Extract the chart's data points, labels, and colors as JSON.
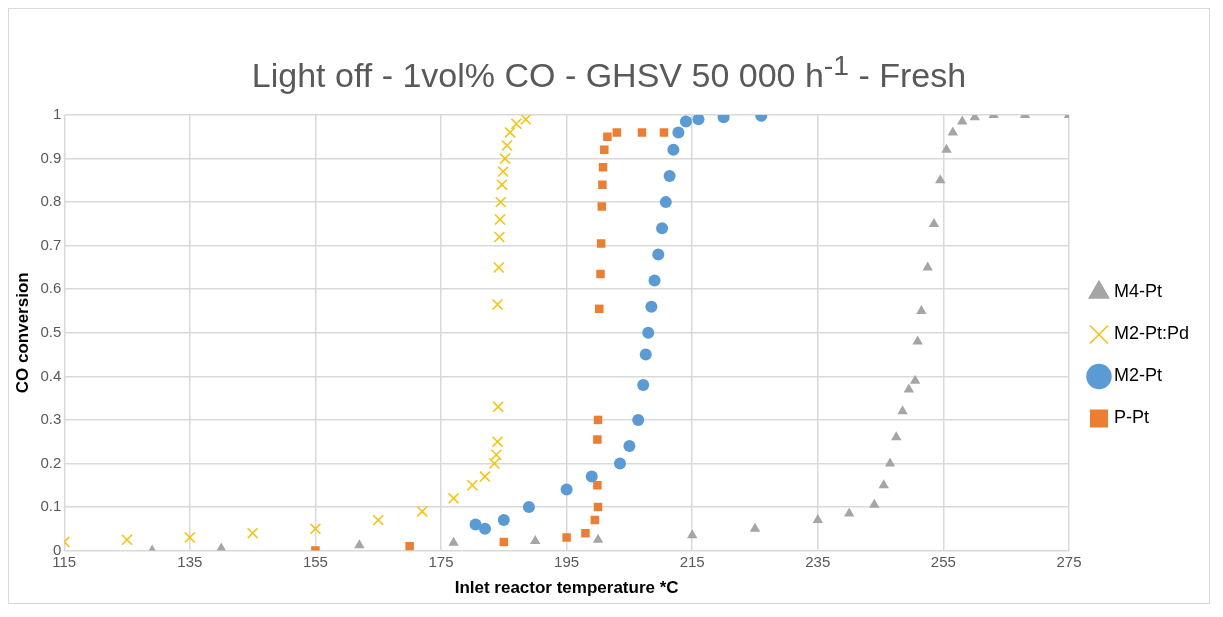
{
  "chart_data": {
    "type": "scatter",
    "title": "Light off - 1vol% CO -  GHSV 50 000 h$^{-1}$ - Fresh",
    "xlabel": "Inlet reactor temperature *C",
    "ylabel": "CO conversion",
    "xlim": [
      115,
      275
    ],
    "xticks": [
      115,
      135,
      155,
      175,
      195,
      215,
      235,
      255,
      275
    ],
    "ylim": [
      0,
      1
    ],
    "yticks": [
      0,
      0.1,
      0.2,
      0.3,
      0.4,
      0.5,
      0.6,
      0.7,
      0.8,
      0.9,
      1
    ],
    "grid": true,
    "legend": "right",
    "series": [
      {
        "name": "M4-Pt",
        "color": "#a5a5a5",
        "marker": "triangle",
        "x": [
          129,
          140,
          162,
          177,
          190,
          200,
          215,
          225,
          235,
          240,
          244,
          245.5,
          246.5,
          247.5,
          248.5,
          249.5,
          250.5,
          250.9,
          251.5,
          252.5,
          253.5,
          254.5,
          255.5,
          256.5,
          258,
          260,
          263,
          268,
          275
        ],
        "values": [
          0,
          0.005,
          0.012,
          0.018,
          0.022,
          0.025,
          0.035,
          0.05,
          0.07,
          0.085,
          0.105,
          0.15,
          0.2,
          0.26,
          0.32,
          0.37,
          0.39,
          0.48,
          0.55,
          0.65,
          0.75,
          0.85,
          0.92,
          0.96,
          0.985,
          0.995,
          1,
          1,
          1
        ]
      },
      {
        "name": "M2-Pt:Pd",
        "color": "#ffc000",
        "marker": "cross",
        "x": [
          115,
          125,
          135,
          145,
          155,
          165,
          172,
          177,
          180,
          182,
          183.5,
          183.8,
          184,
          184.1,
          184,
          184.2,
          184.3,
          184.4,
          184.5,
          184.7,
          184.9,
          185.2,
          185.5,
          186,
          187,
          188.5
        ],
        "values": [
          0.02,
          0.025,
          0.03,
          0.04,
          0.05,
          0.07,
          0.09,
          0.12,
          0.15,
          0.17,
          0.2,
          0.22,
          0.25,
          0.33,
          0.565,
          0.65,
          0.72,
          0.76,
          0.8,
          0.84,
          0.87,
          0.9,
          0.93,
          0.96,
          0.98,
          0.99
        ]
      },
      {
        "name": "M2-Pt",
        "color": "#5b9bd5",
        "marker": "circle",
        "x": [
          180.5,
          182,
          185,
          189,
          195,
          199,
          203.5,
          205,
          206.4,
          207.2,
          207.6,
          208,
          208.5,
          209,
          209.6,
          210.2,
          210.8,
          211.4,
          212,
          212.8,
          214,
          216,
          220,
          226
        ],
        "values": [
          0.06,
          0.05,
          0.07,
          0.1,
          0.14,
          0.17,
          0.2,
          0.24,
          0.3,
          0.38,
          0.45,
          0.5,
          0.56,
          0.62,
          0.68,
          0.74,
          0.8,
          0.86,
          0.92,
          0.96,
          0.985,
          0.99,
          0.995,
          0.998
        ]
      },
      {
        "name": "P-Pt",
        "color": "#ed7d31",
        "marker": "square",
        "x": [
          155,
          170,
          185,
          195,
          198,
          199.5,
          200,
          199.9,
          199.9,
          200,
          200.2,
          200.4,
          200.5,
          200.6,
          200.7,
          200.8,
          201,
          201.5,
          203,
          207,
          210.5
        ],
        "values": [
          0,
          0.01,
          0.02,
          0.03,
          0.04,
          0.07,
          0.1,
          0.15,
          0.255,
          0.3,
          0.555,
          0.635,
          0.705,
          0.79,
          0.84,
          0.88,
          0.92,
          0.95,
          0.96,
          0.96,
          0.96
        ]
      }
    ]
  }
}
